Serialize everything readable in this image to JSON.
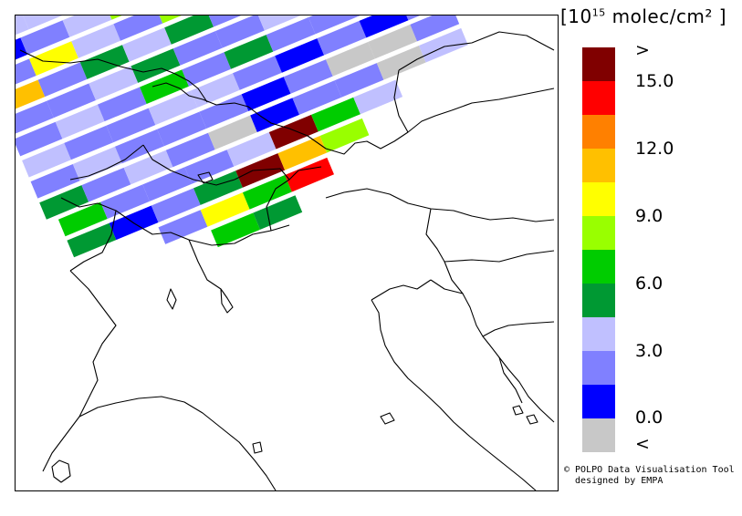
{
  "legend": {
    "title_prefix": "[10",
    "title_exp": "15",
    "title_suffix": " molec/cm² ]",
    "colors": [
      "#800000",
      "#ff0000",
      "#ff8000",
      "#ffc000",
      "#ffff00",
      "#99ff00",
      "#00cc00",
      "#009933",
      "#c0c0ff",
      "#8080ff",
      "#0000ff",
      "#c8c8c8"
    ],
    "tick_labels": [
      ">",
      "15.0",
      "12.0",
      "9.0",
      "6.0",
      "3.0",
      "0.0",
      "<"
    ]
  },
  "credit": {
    "line1": "© POLPO Data Visualisation Tool",
    "line2": "  designed by EMPA"
  },
  "swath": {
    "rows": [
      [
        "#c0c0ff",
        "#c0c0ff",
        "#99ff00",
        "#99ff00",
        "#00cc00"
      ],
      [
        "#0000ff",
        "#8080ff",
        "#c0c0ff",
        "#99ff00",
        "#009933",
        "#99ff00",
        "#99ff00",
        "#ffff00",
        "#99ff00",
        "#00cc00"
      ],
      [
        "#8080ff",
        "#ffff00",
        "#c0c0ff",
        "#8080ff",
        "#99ff00",
        "#009933",
        "#8080ff",
        "#8080ff",
        "#009933",
        "#00cc00"
      ],
      [
        "#ffc000",
        "#8080ff",
        "#009933",
        "#c0c0ff",
        "#009933",
        "#8080ff",
        "#c0c0ff",
        "#8080ff",
        "#c0c0ff",
        "#c0c0ff"
      ],
      [
        "#8080ff",
        "#8080ff",
        "#c0c0ff",
        "#009933",
        "#8080ff",
        "#8080ff",
        "#c0c0ff",
        "#c0c0ff",
        "#8080ff",
        "#8080ff"
      ],
      [
        "#8080ff",
        "#c0c0ff",
        "#8080ff",
        "#00cc00",
        "#8080ff",
        "#009933",
        "#8080ff",
        "#8080ff",
        "#8080ff",
        "#8080ff"
      ],
      [
        "#c0c0ff",
        "#8080ff",
        "#8080ff",
        "#c0c0ff",
        "#c0c0ff",
        "#8080ff",
        "#0000ff",
        "#8080ff",
        "#0000ff",
        "#8080ff"
      ],
      [
        "#8080ff",
        "#c0c0ff",
        "#8080ff",
        "#8080ff",
        "#8080ff",
        "#0000ff",
        "#8080ff",
        "#c8c8c8",
        "#c8c8c8",
        "#8080ff"
      ],
      [
        "#009933",
        "#8080ff",
        "#c0c0ff",
        "#8080ff",
        "#c8c8c8",
        "#0000ff",
        "#8080ff",
        "#8080ff",
        "#c8c8c8",
        "#c0c0ff"
      ],
      [
        "#00cc00",
        "#8080ff",
        "#8080ff",
        "#8080ff",
        "#c0c0ff",
        "#800000",
        "#00cc00",
        "#c0c0ff"
      ],
      [
        "#009933",
        "#0000ff",
        "#8080ff",
        "#009933",
        "#800000",
        "#ffc000",
        "#99ff00"
      ],
      [
        "#8080ff",
        "#ffff00",
        "#00cc00",
        "#ff0000"
      ],
      [
        "#00cc00",
        "#009933"
      ]
    ]
  }
}
